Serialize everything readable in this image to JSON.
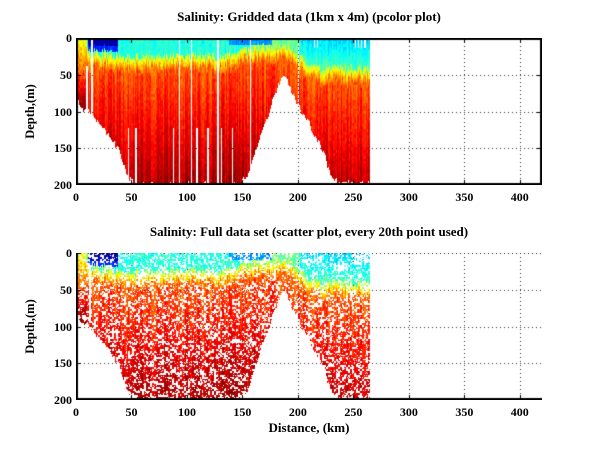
{
  "colors": {
    "background": "#ffffff",
    "axis": "#000000",
    "grid_dots": "#303030",
    "text": "#000000",
    "colormap": "jet",
    "jet_dark_blue": "#00008f",
    "jet_cyan": "#00ffff",
    "jet_yellow": "#ffff00",
    "jet_dark_red": "#8f0000"
  },
  "chart_data": [
    {
      "type": "heatmap",
      "title": "Salinity: Gridded data (1km x 4m) (pcolor plot)",
      "xlabel": "",
      "ylabel": "Depth,(m)",
      "xlim": [
        0,
        420
      ],
      "depth_lim": [
        0,
        200
      ],
      "xticks": [
        0,
        50,
        100,
        150,
        200,
        250,
        300,
        350,
        400
      ],
      "yticks": [
        0,
        50,
        100,
        150,
        200
      ],
      "grid": "dotted",
      "box": true,
      "colormap": "jet",
      "cell_km": 1,
      "cell_m": 4,
      "speckle": 0,
      "gaps_full_km": [
        14.5,
        93.5,
        104,
        128,
        157,
        200.5
      ],
      "gaps_deep_km": [
        47,
        54,
        88,
        109,
        119,
        131,
        141
      ],
      "gaps_deep_zmin_m": 122,
      "gaps_mid": [
        {
          "km": 9.8,
          "zmin": 38,
          "zmax": 200
        }
      ],
      "gaps_surface_km": [
        215,
        217.5,
        252,
        254.5,
        257.5,
        260.5
      ],
      "gaps_surface_zmax_m": 13,
      "seed_offset": 0
    },
    {
      "type": "scatter",
      "title": "Salinity: Full data set (scatter plot, every 20th point used)",
      "xlabel": "Distance, (km)",
      "ylabel": "Depth,(m)",
      "xlim": [
        0,
        420
      ],
      "depth_lim": [
        0,
        200
      ],
      "xticks": [
        0,
        50,
        100,
        150,
        200,
        250,
        300,
        350,
        400
      ],
      "yticks": [
        0,
        50,
        100,
        150,
        200
      ],
      "grid": "dotted",
      "box": false,
      "colormap": "jet",
      "speckle": 0.26,
      "speckle_fine": 0.12,
      "extra_speckle": {
        "km_min": 248,
        "km_max": 265,
        "zmax": 14,
        "p": 0.45
      },
      "gaps_full_km": [],
      "gaps_deep_km": [],
      "gaps_deep_zmin_m": 122,
      "gaps_mid": [
        {
          "km": 12.5,
          "zmin": 18,
          "zmax": 95
        }
      ],
      "gaps_surface_km": [
        215,
        217.5,
        252,
        254.5,
        257.5,
        260.5
      ],
      "gaps_surface_zmax_m": 13,
      "seed_offset": 7
    }
  ],
  "field_model": {
    "data_extent_km": [
      0,
      265
    ],
    "seafloor_profile": {
      "km": [
        0,
        10,
        20,
        30,
        40,
        48,
        53,
        147,
        154,
        161,
        169,
        177,
        184,
        189,
        194,
        202,
        210,
        218,
        226,
        232,
        236,
        261,
        265
      ],
      "depth_m": [
        88,
        96,
        112,
        132,
        158,
        192,
        200,
        200,
        188,
        158,
        122,
        88,
        60,
        56,
        72,
        98,
        118,
        140,
        168,
        192,
        200,
        200,
        196
      ]
    },
    "halocline_top_profile": {
      "km": [
        0,
        10,
        45,
        60,
        90,
        130,
        150,
        170,
        185,
        195,
        203,
        212,
        255,
        265
      ],
      "depth_m": [
        14,
        18,
        26,
        26,
        22,
        26,
        18,
        13,
        11,
        16,
        28,
        40,
        42,
        42
      ]
    },
    "surface_regions": [
      {
        "km": [
          0,
          9.5
        ],
        "t": 0.6,
        "desc": "salty yellow-orange water at left edge"
      },
      {
        "km": [
          11,
          38
        ],
        "t": 0.035,
        "desc": "very fresh dark-navy surface plume"
      },
      {
        "km": [
          138,
          177
        ],
        "t": 0.27,
        "desc": "darker blue surface band near sill"
      },
      {
        "km": [
          158,
          201
        ],
        "t": 0.49,
        "desc": "greenish mixed surface water over sill crest"
      },
      {
        "km": [
          203,
          265
        ],
        "t": 0.33,
        "desc": "deep cyan fresh layer on right side"
      },
      {
        "km": "elsewhere",
        "t": 0.41,
        "desc": "cyan fresh surface layer"
      }
    ],
    "vertical_structure": {
      "surface_layer": "fresh (cyan/blue), 10-45 m thick",
      "halocline": "green-yellow-orange transition ~20 m thick",
      "deep_layer": "salty red to dark-red down to 200 m",
      "deep_t_base": 0.8,
      "deep_t_gain": 0.16
    }
  }
}
